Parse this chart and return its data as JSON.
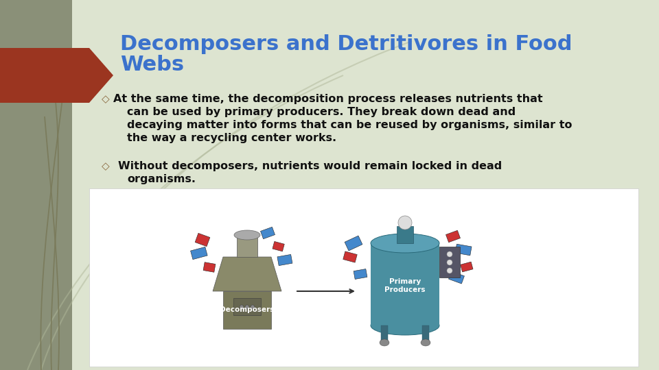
{
  "title_line1": "Decomposers and Detritivores in Food",
  "title_line2": "Webs",
  "title_color": "#3B72CC",
  "title_fontsize": 22,
  "left_panel_color": "#8a9078",
  "right_panel_color": "#dde4d0",
  "left_accent_color": "#9B3520",
  "bullet1_line1": "◇  At the same time, the decomposition process releases nutrients that",
  "bullet1_line2": "     can be used by primary producers. They break down dead and",
  "bullet1_line3": "     decaying matter into forms that can be reused by organisms, similar to",
  "bullet1_line4": "     the way a recycling center works.",
  "bullet2_line1": "◇   Without decomposers, nutrients would remain locked in dead",
  "bullet2_line2": "     organisms.",
  "bullet_fontsize": 11.5,
  "bullet_color": "#111111",
  "diamond_color": "#8B6A40",
  "vine_color1": "#7a7a5a",
  "vine_color2": "#b0b89a",
  "img_bg": "#ffffff"
}
